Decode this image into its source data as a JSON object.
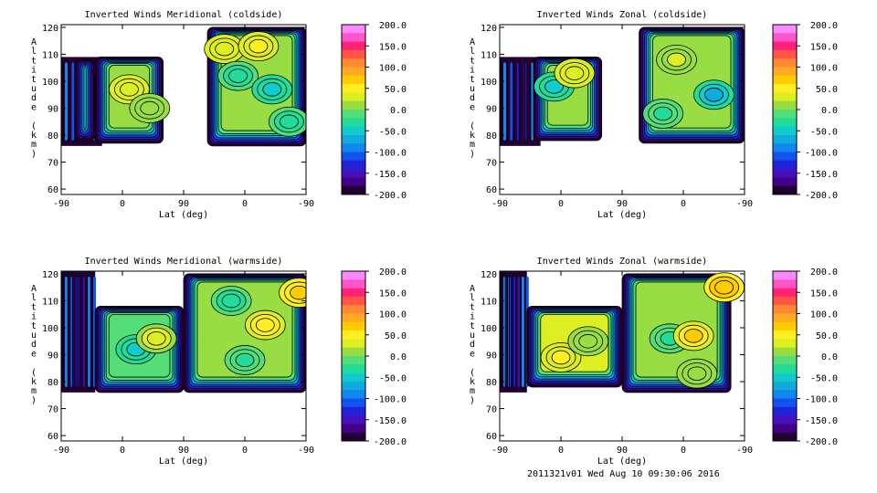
{
  "footer": "2011321v01 Wed Aug 10 09:30:06 2016",
  "colorbar": {
    "labels": [
      "200.0",
      "150.0",
      "100.0",
      "50.0",
      "0.0",
      "-50.0",
      "-100.0",
      "-150.0",
      "-200.0"
    ],
    "colors": [
      "#ff88ff",
      "#ff55cc",
      "#ff2277",
      "#ff5544",
      "#ff8833",
      "#ffaa22",
      "#ffcc00",
      "#ffee22",
      "#ddee22",
      "#99dd44",
      "#55dd77",
      "#22dd99",
      "#11cccc",
      "#11aadd",
      "#1188ee",
      "#1155ee",
      "#2222dd",
      "#4411bb",
      "#440088",
      "#220033"
    ]
  },
  "chart_data": [
    {
      "type": "heatmap",
      "title": "Inverted Winds Meridional (coldside)",
      "xlabel": "Lat (deg)",
      "ylabel": "Altitude (km)",
      "x_ticks": [
        "-90",
        "0",
        "90",
        "0",
        "-90"
      ],
      "y_ticks": [
        "60",
        "70",
        "80",
        "90",
        "100",
        "110",
        "120"
      ],
      "ylim": [
        58,
        121
      ],
      "blocks": [
        {
          "x": [
            -90,
            -30
          ],
          "y": [
            76,
            109
          ],
          "value": -175,
          "tag": "edge-dark"
        },
        {
          "x": [
            -70,
            -40
          ],
          "y": [
            78,
            108
          ],
          "value": 30
        },
        {
          "x": [
            -40,
            60
          ],
          "y": [
            77,
            109
          ],
          "value": 10
        },
        {
          "x": [
            125,
            270
          ],
          "y": [
            76,
            120
          ],
          "value": 5
        }
      ],
      "spots": [
        {
          "x": 10,
          "y": 97,
          "value": 40
        },
        {
          "x": 40,
          "y": 90,
          "value": 20
        },
        {
          "x": 150,
          "y": 112,
          "value": 40
        },
        {
          "x": 200,
          "y": 113,
          "value": 45
        },
        {
          "x": 170,
          "y": 102,
          "value": -30
        },
        {
          "x": 220,
          "y": 97,
          "value": -40
        },
        {
          "x": 245,
          "y": 85,
          "value": -30
        }
      ]
    },
    {
      "type": "heatmap",
      "title": "Inverted Winds Zonal (coldside)",
      "xlabel": "Lat (deg)",
      "ylabel": "Altitude (km)",
      "x_ticks": [
        "-90",
        "0",
        "90",
        "0",
        "-90"
      ],
      "y_ticks": [
        "60",
        "70",
        "80",
        "90",
        "100",
        "110",
        "120"
      ],
      "ylim": [
        58,
        121
      ],
      "blocks": [
        {
          "x": [
            -90,
            -30
          ],
          "y": [
            76,
            109
          ],
          "value": -175,
          "tag": "edge-dark"
        },
        {
          "x": [
            -40,
            60
          ],
          "y": [
            78,
            109
          ],
          "value": 10
        },
        {
          "x": [
            115,
            270
          ],
          "y": [
            77,
            120
          ],
          "value": 10
        }
      ],
      "spots": [
        {
          "x": -10,
          "y": 98,
          "value": -45
        },
        {
          "x": 20,
          "y": 103,
          "value": 35
        },
        {
          "x": 225,
          "y": 95,
          "value": -60
        },
        {
          "x": 170,
          "y": 108,
          "value": 25
        },
        {
          "x": 150,
          "y": 88,
          "value": -20
        }
      ]
    },
    {
      "type": "heatmap",
      "title": "Inverted Winds Meridional (warmside)",
      "xlabel": "Lat (deg)",
      "ylabel": "Altitude (km)",
      "x_ticks": [
        "-90",
        "0",
        "90",
        "0",
        "-90"
      ],
      "y_ticks": [
        "60",
        "70",
        "80",
        "90",
        "100",
        "110",
        "120"
      ],
      "ylim": [
        58,
        121
      ],
      "blocks": [
        {
          "x": [
            -90,
            -40
          ],
          "y": [
            76,
            121
          ],
          "value": -175,
          "tag": "edge-dark"
        },
        {
          "x": [
            -40,
            90
          ],
          "y": [
            76,
            108
          ],
          "value": -10
        },
        {
          "x": [
            90,
            270
          ],
          "y": [
            76,
            120
          ],
          "value": 10
        }
      ],
      "spots": [
        {
          "x": 20,
          "y": 92,
          "value": -40
        },
        {
          "x": 50,
          "y": 96,
          "value": 30
        },
        {
          "x": 210,
          "y": 101,
          "value": 55
        },
        {
          "x": 160,
          "y": 110,
          "value": -30
        },
        {
          "x": 260,
          "y": 113,
          "value": 70
        },
        {
          "x": 180,
          "y": 88,
          "value": -20
        }
      ]
    },
    {
      "type": "heatmap",
      "title": "Inverted Winds Zonal (warmside)",
      "xlabel": "Lat (deg)",
      "ylabel": "Altitude (km)",
      "x_ticks": [
        "-90",
        "0",
        "90",
        "0",
        "-90"
      ],
      "y_ticks": [
        "60",
        "70",
        "80",
        "90",
        "100",
        "110",
        "120"
      ],
      "ylim": [
        58,
        121
      ],
      "blocks": [
        {
          "x": [
            -90,
            -50
          ],
          "y": [
            76,
            121
          ],
          "value": -175,
          "tag": "edge-dark"
        },
        {
          "x": [
            -50,
            90
          ],
          "y": [
            78,
            108
          ],
          "value": 30
        },
        {
          "x": [
            90,
            250
          ],
          "y": [
            76,
            120
          ],
          "value": 20
        }
      ],
      "spots": [
        {
          "x": 0,
          "y": 89,
          "value": 45
        },
        {
          "x": 40,
          "y": 95,
          "value": 20
        },
        {
          "x": 160,
          "y": 96,
          "value": -20
        },
        {
          "x": 195,
          "y": 97,
          "value": 65
        },
        {
          "x": 240,
          "y": 115,
          "value": 80
        },
        {
          "x": 200,
          "y": 83,
          "value": 10
        }
      ]
    }
  ]
}
